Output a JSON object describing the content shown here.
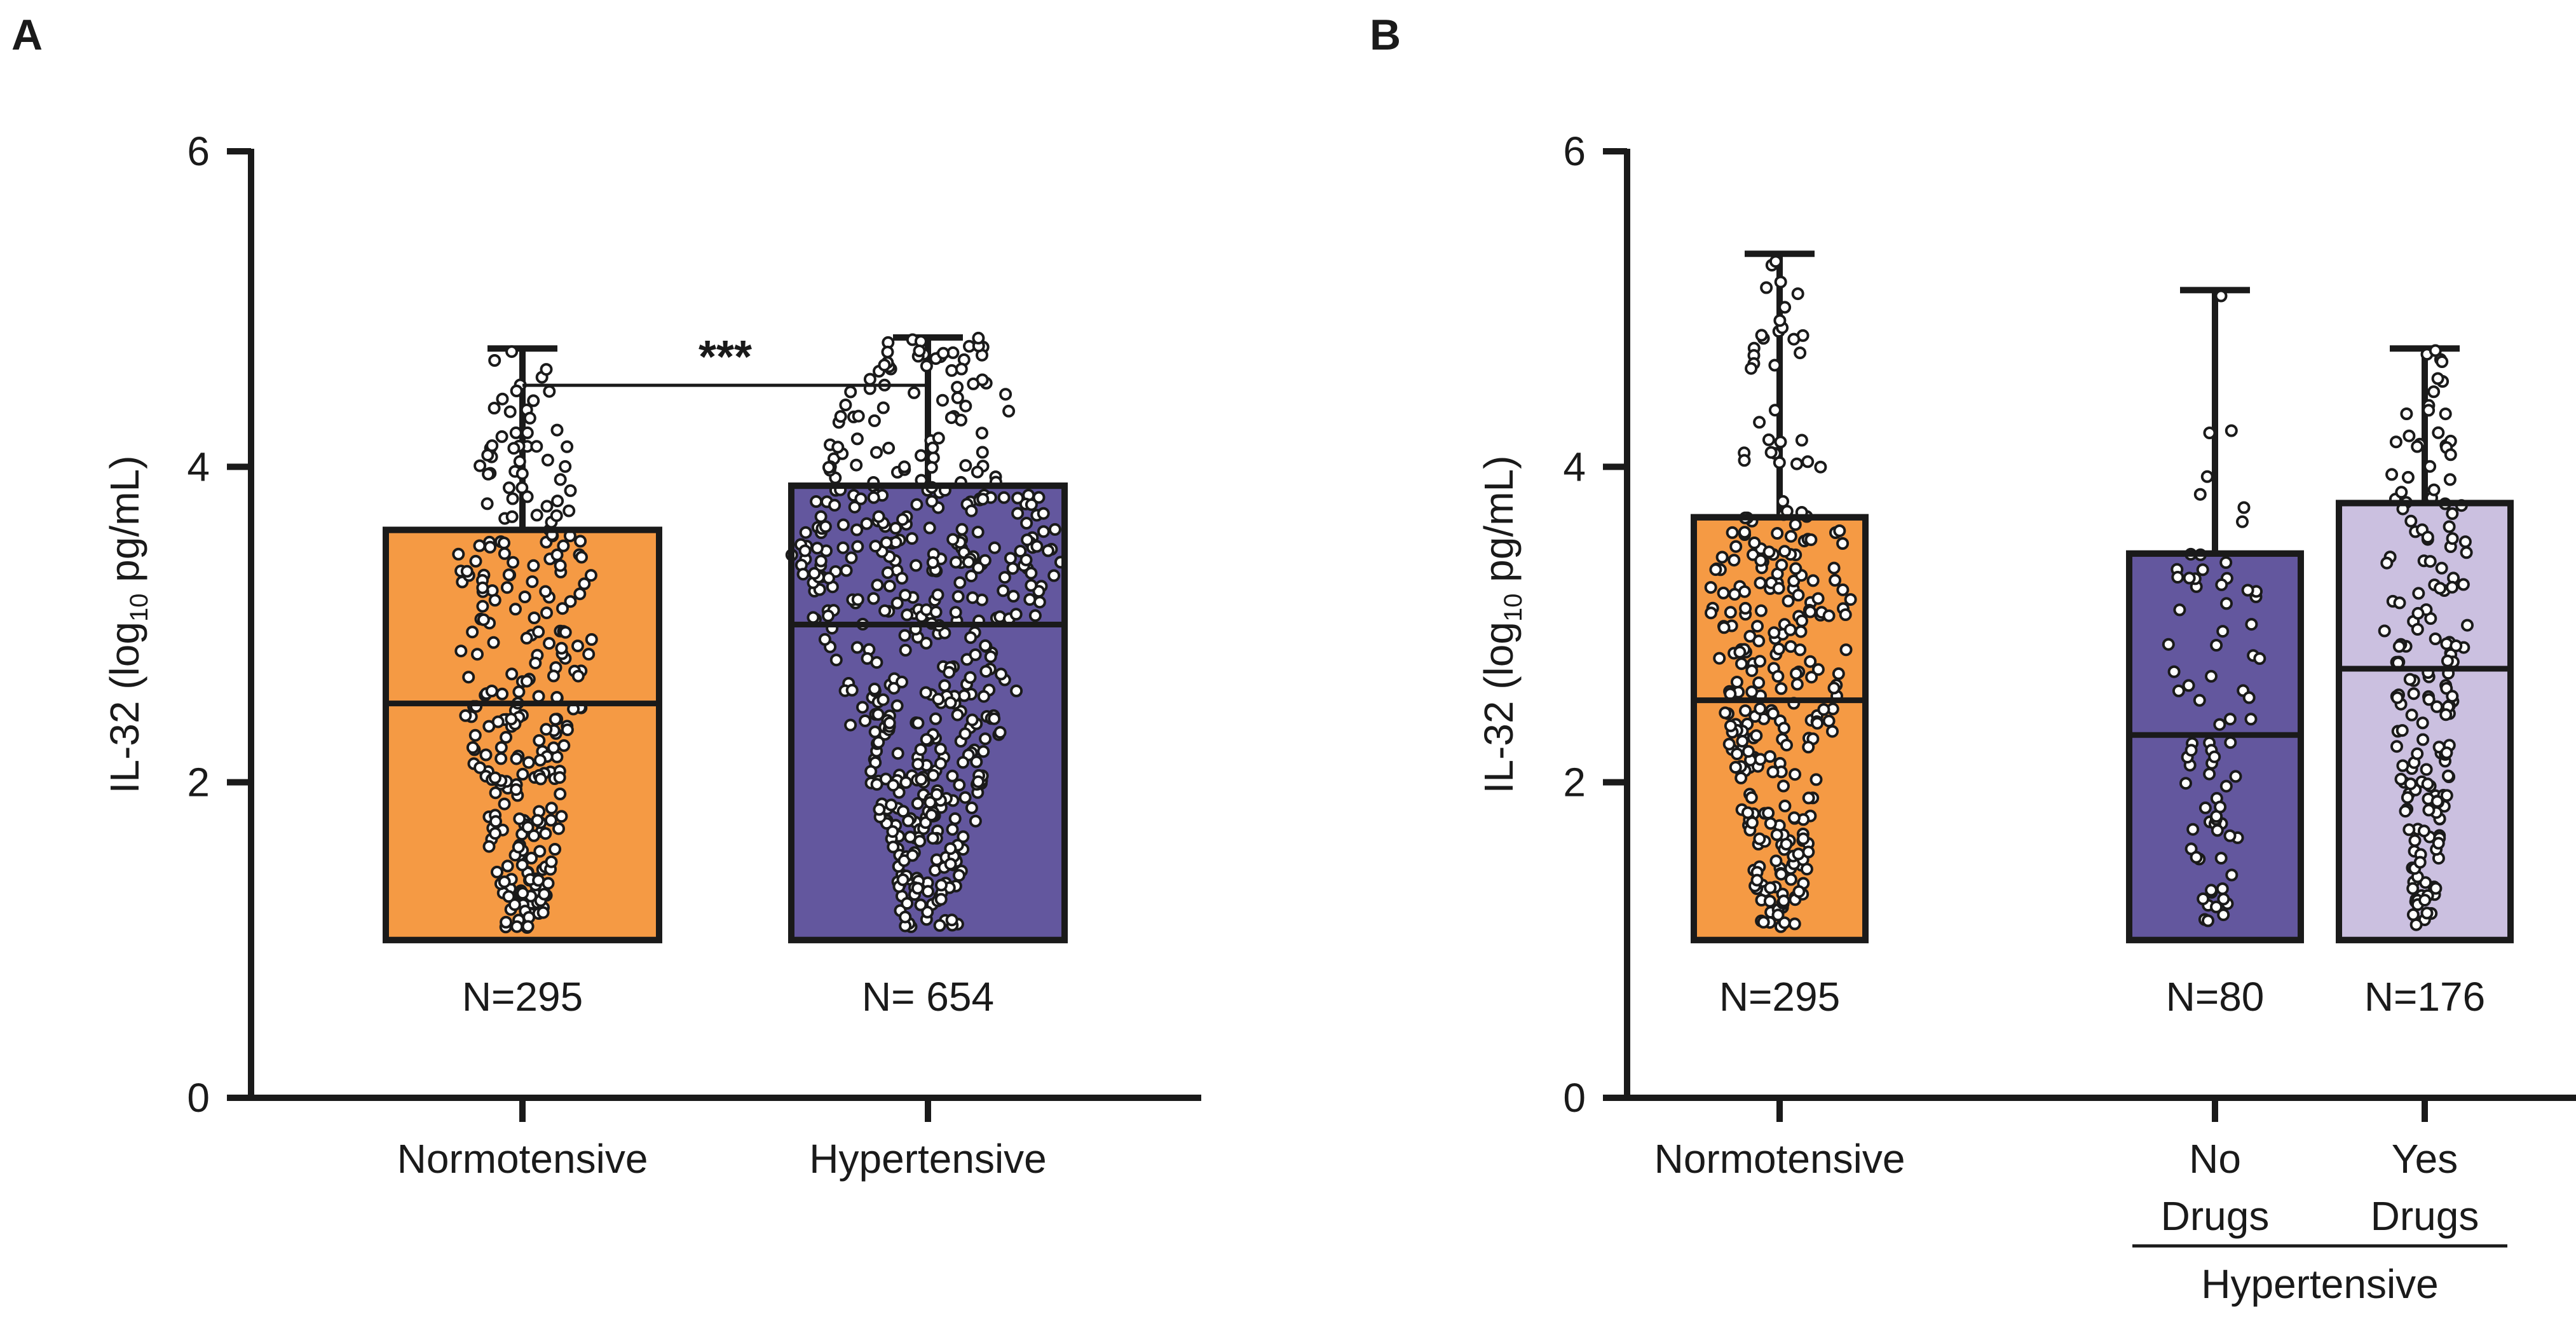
{
  "figure": {
    "panel_a_letter": "A",
    "panel_b_letter": "B"
  },
  "colors": {
    "normotensive": "#F59A44",
    "hypertensive": "#63579E",
    "no_drugs": "#63579E",
    "yes_drugs": "#CBC0E0",
    "ink": "#1a1a1a",
    "dot_fill": "#ffffff"
  },
  "chart_data": [
    {
      "panel": "A",
      "type": "box",
      "ylabel_main": "IL-32 (log",
      "ylabel_sub": "10",
      "ylabel_tail": " pg/mL)",
      "ylim": [
        0,
        6
      ],
      "yticks": [
        "0",
        "2",
        "4",
        "6"
      ],
      "groups": [
        {
          "label_lines": [
            "Normotensive"
          ],
          "n_label": "N=295",
          "n": 295,
          "min": 1.0,
          "q1": 1.0,
          "median": 2.5,
          "q3": 3.6,
          "max": 4.75,
          "color": "normotensive"
        },
        {
          "label_lines": [
            "Hypertensive"
          ],
          "n_label": "N= 654",
          "n": 654,
          "min": 1.0,
          "q1": 1.0,
          "median": 3.0,
          "q3": 3.88,
          "max": 4.82,
          "color": "hypertensive"
        }
      ],
      "significance": {
        "text": "***",
        "from": 0,
        "to": 1,
        "y": 5.0
      }
    },
    {
      "panel": "B",
      "type": "box",
      "ylabel_main": "IL-32 (log",
      "ylabel_sub": "10",
      "ylabel_tail": " pg/mL)",
      "ylim": [
        0,
        6
      ],
      "yticks": [
        "0",
        "2",
        "4",
        "6"
      ],
      "groups": [
        {
          "label_lines": [
            "Normotensive"
          ],
          "n_label": "N=295",
          "n": 295,
          "min": 1.0,
          "q1": 1.0,
          "median": 2.52,
          "q3": 3.68,
          "max": 5.35,
          "color": "normotensive"
        },
        {
          "label_lines": [
            "No",
            "Drugs"
          ],
          "n_label": "N=80",
          "n": 80,
          "min": 1.0,
          "q1": 1.0,
          "median": 2.3,
          "q3": 3.45,
          "max": 5.12,
          "color": "no_drugs"
        },
        {
          "label_lines": [
            "Yes",
            "Drugs"
          ],
          "n_label": "N=176",
          "n": 176,
          "min": 1.0,
          "q1": 1.0,
          "median": 2.72,
          "q3": 3.77,
          "max": 4.75,
          "color": "yes_drugs"
        }
      ],
      "bracket": {
        "label": "Hypertensive",
        "from": 1,
        "to": 2
      }
    }
  ]
}
